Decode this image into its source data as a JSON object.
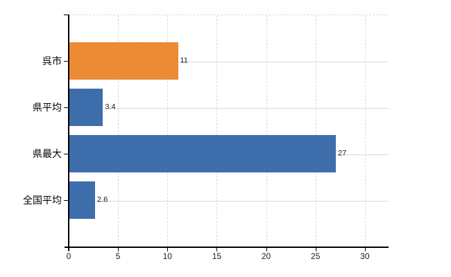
{
  "chart_data": {
    "type": "bar",
    "orientation": "horizontal",
    "categories": [
      "呉市",
      "県平均",
      "県最大",
      "全国平均"
    ],
    "values": [
      11,
      3.4,
      27,
      2.6
    ],
    "bars": [
      {
        "label": "呉市",
        "value": 11,
        "value_label": "11",
        "color": "#ED8733",
        "color_light": "#F1984A",
        "color_dark": "#E87C21"
      },
      {
        "label": "県平均",
        "value": 3.4,
        "value_label": "3.4",
        "color": "#3D6EB0",
        "color_light": "#4A7AB9",
        "color_dark": "#33619F"
      },
      {
        "label": "県最大",
        "value": 27,
        "value_label": "27",
        "color": "#3D6EB0",
        "color_light": "#4A7AB9",
        "color_dark": "#33619F"
      },
      {
        "label": "全国平均",
        "value": 2.6,
        "value_label": "2.6",
        "color": "#3D6EB0",
        "color_light": "#4A7AB9",
        "color_dark": "#33619F"
      }
    ],
    "x_axis": {
      "ticks": [
        0,
        5,
        10,
        15,
        20,
        25,
        30
      ],
      "tick_labels": [
        "0",
        "5",
        "10",
        "15",
        "20",
        "25",
        "30"
      ],
      "min": 0,
      "max": 32.4
    },
    "grid": {
      "vertical_style": "dashed",
      "horizontal_style": "solid",
      "vertical_color": "#d9d9d9",
      "horizontal_color": "#d5ddd5",
      "top_border": "dashed"
    },
    "legend": "none",
    "title": "",
    "colors": {
      "axis": "#000000",
      "text": "#1a1a1a",
      "category_text": "#000000",
      "background": "#ffffff"
    }
  }
}
